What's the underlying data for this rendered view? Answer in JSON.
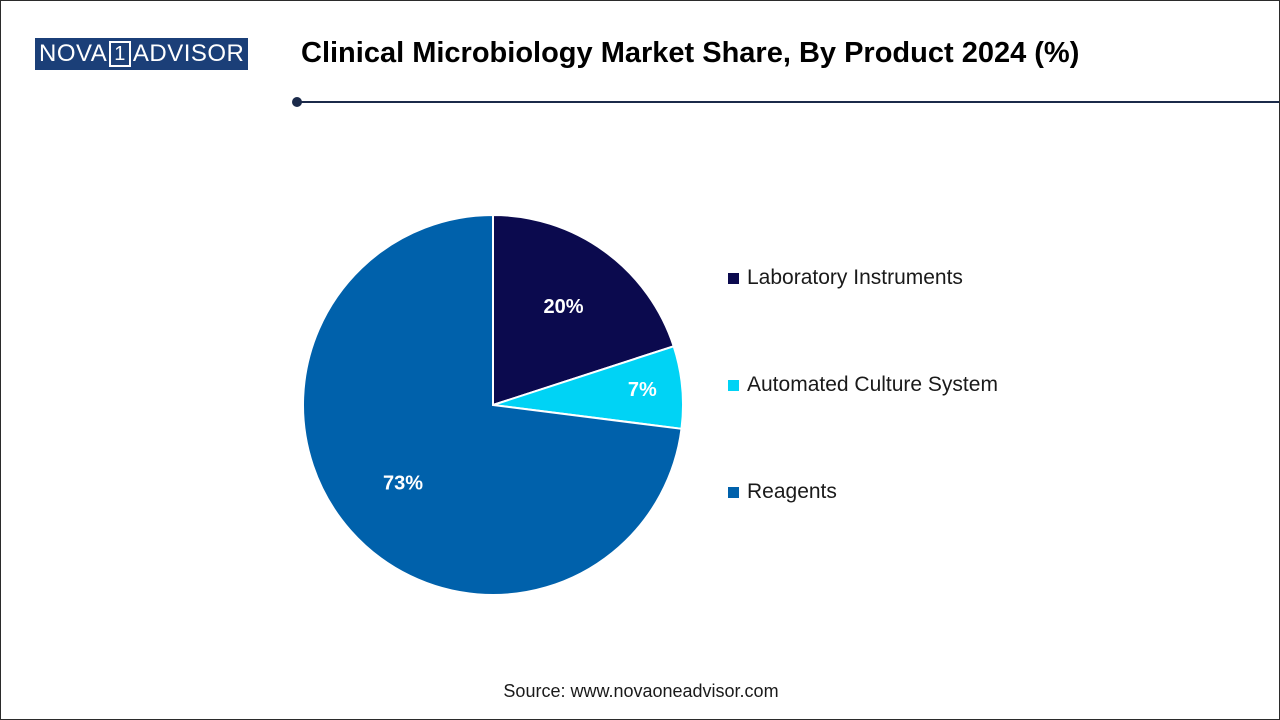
{
  "logo": {
    "text_left": "NOVA",
    "text_mid": "1",
    "text_right": "ADVISOR",
    "color": "#1b3f78"
  },
  "source": "Source: www.novaoneadvisor.com",
  "chart_data": {
    "type": "pie",
    "title": "Clinical Microbiology Market Share, By Product 2024 (%)",
    "categories": [
      "Laboratory Instruments",
      "Automated Culture System",
      "Reagents"
    ],
    "values": [
      20,
      7,
      73
    ],
    "labels": [
      "20%",
      "7%",
      "73%"
    ],
    "colors": [
      "#0b0a4e",
      "#00d3f5",
      "#0061ab"
    ],
    "start_angle": 0,
    "direction": "clockwise",
    "legend_position": "right"
  }
}
